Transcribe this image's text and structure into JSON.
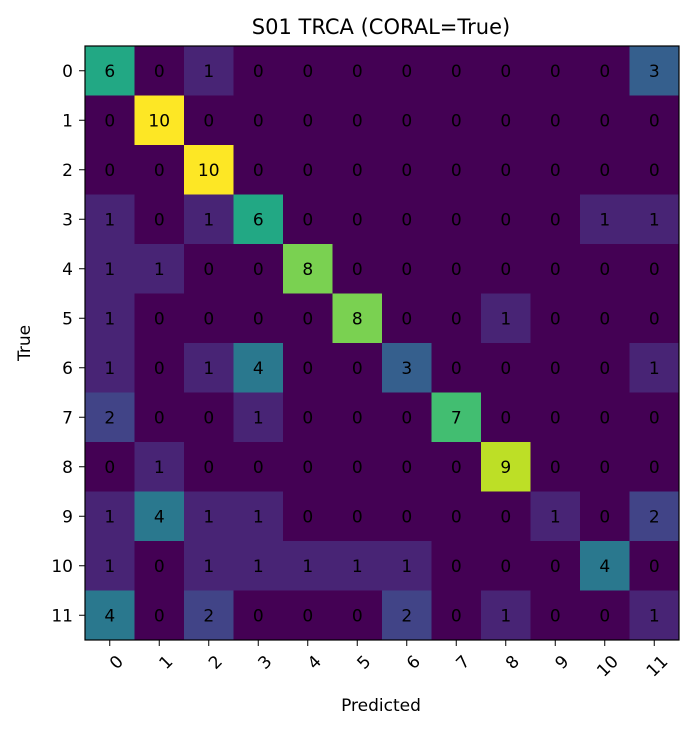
{
  "chart_data": {
    "type": "heatmap",
    "title": "S01 TRCA (CORAL=True)",
    "xlabel": "Predicted",
    "ylabel": "True",
    "x_categories": [
      "0",
      "1",
      "2",
      "3",
      "4",
      "5",
      "6",
      "7",
      "8",
      "9",
      "10",
      "11"
    ],
    "y_categories": [
      "0",
      "1",
      "2",
      "3",
      "4",
      "5",
      "6",
      "7",
      "8",
      "9",
      "10",
      "11"
    ],
    "colormap": "viridis",
    "value_range": [
      0,
      10
    ],
    "grid": false,
    "values": [
      [
        6,
        0,
        1,
        0,
        0,
        0,
        0,
        0,
        0,
        0,
        0,
        3
      ],
      [
        0,
        10,
        0,
        0,
        0,
        0,
        0,
        0,
        0,
        0,
        0,
        0
      ],
      [
        0,
        0,
        10,
        0,
        0,
        0,
        0,
        0,
        0,
        0,
        0,
        0
      ],
      [
        1,
        0,
        1,
        6,
        0,
        0,
        0,
        0,
        0,
        0,
        1,
        1
      ],
      [
        1,
        1,
        0,
        0,
        8,
        0,
        0,
        0,
        0,
        0,
        0,
        0
      ],
      [
        1,
        0,
        0,
        0,
        0,
        8,
        0,
        0,
        1,
        0,
        0,
        0
      ],
      [
        1,
        0,
        1,
        4,
        0,
        0,
        3,
        0,
        0,
        0,
        0,
        1
      ],
      [
        2,
        0,
        0,
        1,
        0,
        0,
        0,
        7,
        0,
        0,
        0,
        0
      ],
      [
        0,
        1,
        0,
        0,
        0,
        0,
        0,
        0,
        9,
        0,
        0,
        0
      ],
      [
        1,
        4,
        1,
        1,
        0,
        0,
        0,
        0,
        0,
        1,
        0,
        2
      ],
      [
        1,
        0,
        1,
        1,
        1,
        1,
        1,
        0,
        0,
        0,
        4,
        0
      ],
      [
        4,
        0,
        2,
        0,
        0,
        0,
        2,
        0,
        1,
        0,
        0,
        1
      ]
    ]
  }
}
